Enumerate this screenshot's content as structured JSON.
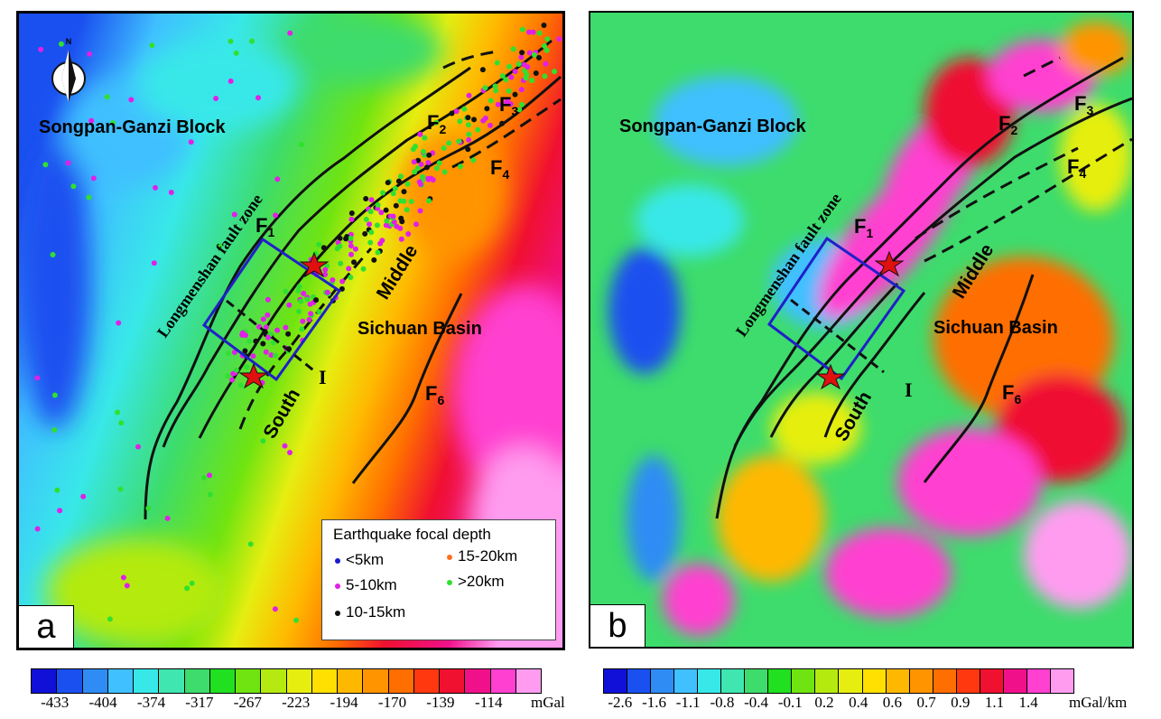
{
  "colors": {
    "ramp": [
      "#1010d8",
      "#1a50f0",
      "#2f8cf4",
      "#40c0ff",
      "#38e8e8",
      "#40e6b0",
      "#3ddc6c",
      "#20e020",
      "#70e410",
      "#b4ea10",
      "#e6ee10",
      "#ffe000",
      "#ffb800",
      "#ff9400",
      "#ff6e00",
      "#ff3810",
      "#f01030",
      "#f0108a",
      "#ff40d0",
      "#ff9cf0"
    ],
    "fault": "#111111",
    "study_box": "#2020c8",
    "epicenter": "#e01010",
    "depth_lt5": "#1a1ad0",
    "depth_5_10": "#e020e8",
    "depth_10_15": "#111111",
    "depth_15_20": "#ff7020",
    "depth_gt20": "#30e030"
  },
  "panel_a": {
    "label": "a",
    "north_arrow": "N",
    "regions": {
      "songpan": "Songpan-Ganzi Block",
      "sichuan": "Sichuan Basin",
      "longmenshan": "Longmenshan fault zone",
      "middle": "Middle",
      "south": "South",
      "profile": "I"
    },
    "faults": {
      "f1": "F",
      "f1_sub": "1",
      "f2": "F",
      "f2_sub": "2",
      "f3": "F",
      "f3_sub": "3",
      "f4": "F",
      "f4_sub": "4",
      "f6": "F",
      "f6_sub": "6"
    },
    "legend": {
      "title": "Earthquake focal depth",
      "items": [
        {
          "label": "<5km",
          "color_key": "depth_lt5"
        },
        {
          "label": "5-10km",
          "color_key": "depth_5_10"
        },
        {
          "label": "10-15km",
          "color_key": "depth_10_15"
        },
        {
          "label": "15-20km",
          "color_key": "depth_15_20"
        },
        {
          "label": ">20km",
          "color_key": "depth_gt20"
        }
      ]
    },
    "colorbar": {
      "ticks": [
        "-433",
        "-404",
        "-374",
        "-317",
        "-267",
        "-223",
        "-194",
        "-170",
        "-139",
        "-114"
      ],
      "unit": "mGal"
    }
  },
  "panel_b": {
    "label": "b",
    "regions": {
      "songpan": "Songpan-Ganzi Block",
      "sichuan": "Sichuan Basin",
      "longmenshan": "Longmenshan fault zone",
      "middle": "Middle",
      "south": "South",
      "profile": "I"
    },
    "faults": {
      "f1": "F",
      "f1_sub": "1",
      "f2": "F",
      "f2_sub": "2",
      "f3": "F",
      "f3_sub": "3",
      "f4": "F",
      "f4_sub": "4",
      "f6": "F",
      "f6_sub": "6"
    },
    "colorbar": {
      "ticks": [
        "-2.6",
        "-1.6",
        "-1.1",
        "-0.8",
        "-0.4",
        "-0.1",
        "0.2",
        "0.4",
        "0.6",
        "0.7",
        "0.9",
        "1.1",
        "1.4"
      ],
      "unit": "mGal/km"
    }
  }
}
